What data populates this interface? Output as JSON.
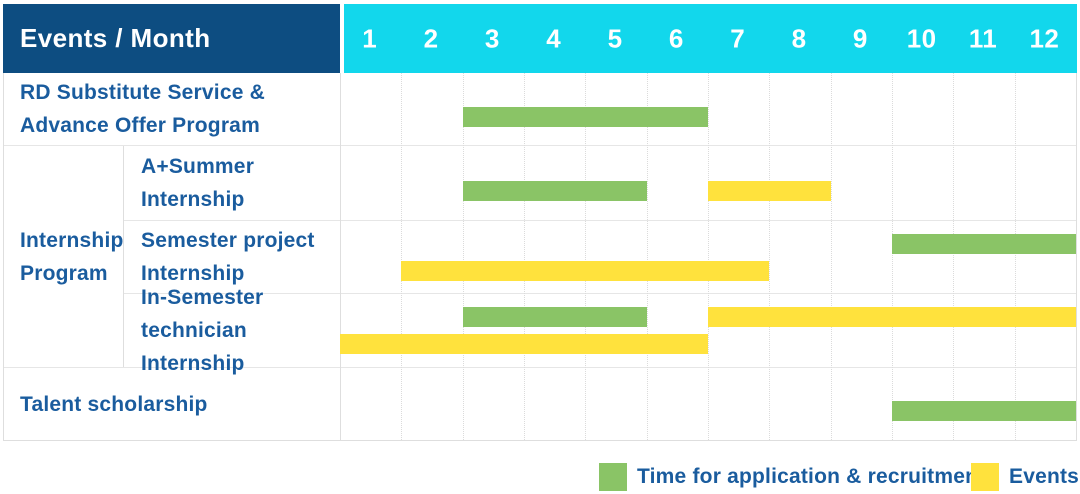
{
  "title": "Events / Month",
  "months": [
    "1",
    "2",
    "3",
    "4",
    "5",
    "6",
    "7",
    "8",
    "9",
    "10",
    "11",
    "12"
  ],
  "colors": {
    "header_navy": "#0D4D81",
    "header_cyan": "#12D7EC",
    "bar_green": "#8AC466",
    "bar_yellow": "#FFE23D",
    "label_blue": "#1A5C9E",
    "grid_solid": "#DEDEDE",
    "grid_dotted": "#DBDBDB"
  },
  "legend": [
    {
      "key": "application",
      "label": "Time for application & recruitment",
      "color": "#8AC466"
    },
    {
      "key": "events",
      "label": "Events",
      "color": "#FFE23D"
    }
  ],
  "groups": [
    {
      "label": "Internship Program",
      "label_lines": [
        "Internship",
        "Program"
      ],
      "row_start": 1,
      "row_end": 3
    }
  ],
  "chart_data": {
    "type": "bar",
    "variant": "gantt",
    "title": "Events / Month",
    "x_axis": {
      "unit": "month",
      "ticks": [
        1,
        2,
        3,
        4,
        5,
        6,
        7,
        8,
        9,
        10,
        11,
        12
      ],
      "range": [
        1,
        12
      ]
    },
    "series_names": [
      "Time for application & recruitment",
      "Events"
    ],
    "rows": [
      {
        "group": null,
        "label": "RD Substitute Service & Advance Offer Program",
        "label_lines": [
          "RD Substitute Service &",
          "Advance Offer Program"
        ],
        "bars": [
          {
            "series": "Time for application & recruitment",
            "start_month": 3,
            "end_month": 6,
            "line": 0
          }
        ]
      },
      {
        "group": "Internship Program",
        "label": "A+Summer Internship",
        "label_lines": [
          "A+Summer",
          "Internship"
        ],
        "bars": [
          {
            "series": "Time for application & recruitment",
            "start_month": 3,
            "end_month": 5,
            "line": 0
          },
          {
            "series": "Events",
            "start_month": 7,
            "end_month": 8,
            "line": 0
          }
        ]
      },
      {
        "group": "Internship Program",
        "label": "Semester project Internship",
        "label_lines": [
          "Semester project",
          "Internship"
        ],
        "bars": [
          {
            "series": "Time for application & recruitment",
            "start_month": 10,
            "end_month": 12,
            "line": 0
          },
          {
            "series": "Events",
            "start_month": 2,
            "end_month": 7,
            "line": 1
          }
        ]
      },
      {
        "group": "Internship Program",
        "label": "In-Semester technician Internship",
        "label_lines": [
          "In-Semester",
          "technician Internship"
        ],
        "bars": [
          {
            "series": "Time for application & recruitment",
            "start_month": 3,
            "end_month": 5,
            "line": 0
          },
          {
            "series": "Events",
            "start_month": 7,
            "end_month": 12,
            "line": 0
          },
          {
            "series": "Events",
            "start_month": 1,
            "end_month": 6,
            "line": 1
          }
        ]
      },
      {
        "group": null,
        "label": "Talent scholarship",
        "label_lines": [
          "Talent scholarship"
        ],
        "bars": [
          {
            "series": "Time for application & recruitment",
            "start_month": 10,
            "end_month": 12,
            "line": 0
          }
        ]
      }
    ]
  }
}
